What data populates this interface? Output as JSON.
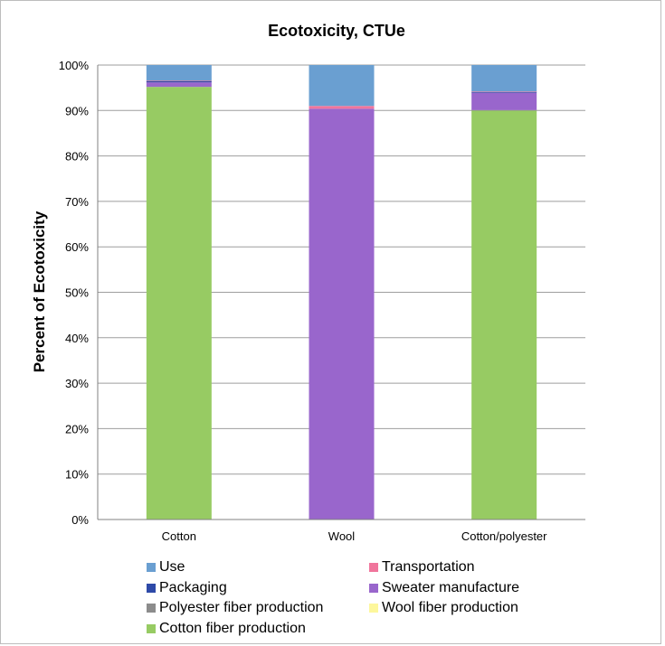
{
  "chart_data": {
    "type": "bar",
    "stacked": true,
    "title": "Ecotoxicity, CTUe",
    "xlabel": "",
    "ylabel": "Percent of Ecotoxicity",
    "ylim": [
      0,
      100
    ],
    "y_ticks": [
      "0%",
      "10%",
      "20%",
      "30%",
      "40%",
      "50%",
      "60%",
      "70%",
      "80%",
      "90%",
      "100%"
    ],
    "grid": true,
    "legend_position": "bottom",
    "categories": [
      "Cotton",
      "Wool",
      "Cotton/polyester"
    ],
    "series": [
      {
        "name": "Cotton fiber production",
        "color": "#97cb63",
        "values": [
          95.2,
          0,
          90.0
        ]
      },
      {
        "name": "Wool fiber production",
        "color": "#fdf79c",
        "values": [
          0,
          0,
          0
        ]
      },
      {
        "name": "Polyester fiber production",
        "color": "#8c8c8c",
        "values": [
          0,
          0,
          0.1
        ]
      },
      {
        "name": "Sweater manufacture",
        "color": "#9966cc",
        "values": [
          1.0,
          90.4,
          3.8
        ]
      },
      {
        "name": "Packaging",
        "color": "#2e4aa8",
        "values": [
          0.3,
          0,
          0.2
        ]
      },
      {
        "name": "Transportation",
        "color": "#f0759c",
        "values": [
          0.1,
          0.6,
          0.1
        ]
      },
      {
        "name": "Use",
        "color": "#6a9fd1",
        "values": [
          3.4,
          9.0,
          5.8
        ]
      }
    ],
    "legend_order": [
      "Use",
      "Transportation",
      "Packaging",
      "Sweater manufacture",
      "Polyester fiber production",
      "Wool fiber production",
      "Cotton fiber production"
    ]
  }
}
